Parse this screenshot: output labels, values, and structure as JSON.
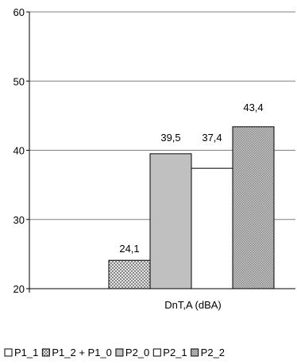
{
  "chart_data": {
    "type": "bar",
    "categories": [
      "DnT,A (dBA)"
    ],
    "series": [
      {
        "name": "P1_1",
        "values": [
          null
        ],
        "label": "",
        "fill": "#ffffff",
        "pattern": "none"
      },
      {
        "name": "P1_2 + P1_0",
        "values": [
          24.1
        ],
        "label": "24,1",
        "fill": "#d9d9d9",
        "pattern": "crosshatch"
      },
      {
        "name": "P2_0",
        "values": [
          39.5
        ],
        "label": "39,5",
        "fill": "#c0c0c0",
        "pattern": "none"
      },
      {
        "name": "P2_1",
        "values": [
          37.4
        ],
        "label": "37,4",
        "fill": "#ffffff",
        "pattern": "none"
      },
      {
        "name": "P2_2",
        "values": [
          43.4
        ],
        "label": "43,4",
        "fill": "#bfbfbf",
        "pattern": "dots"
      }
    ],
    "yticks": [
      "20",
      "30",
      "40",
      "50",
      "60"
    ],
    "ylim": [
      20,
      60
    ],
    "grid": true,
    "legend": "bottom",
    "colors": {
      "axis": "#000000",
      "grid": "#808080",
      "bar_stroke": "#000000"
    }
  }
}
